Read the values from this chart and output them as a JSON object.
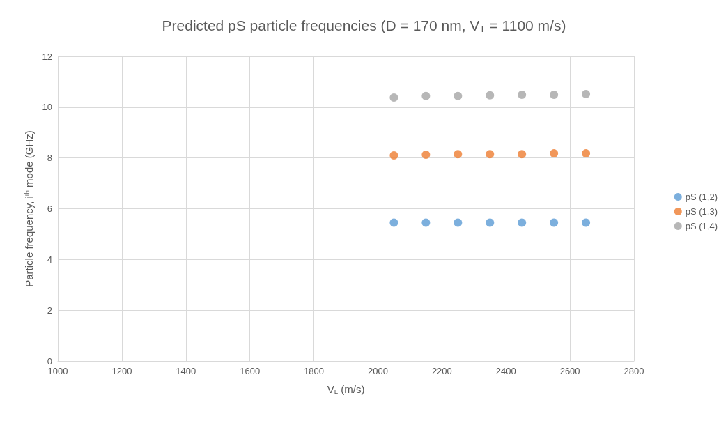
{
  "chart_data": {
    "type": "scatter",
    "title": "Predicted pS particle frequencies (D = 170 nm, V$_{T}$ = 1100 m/s)",
    "xlabel": "V$_{L}$ (m/s)",
    "ylabel": "Particle frequency, i$^{th}$ mode (GHz)",
    "x": [
      2050,
      2150,
      2250,
      2350,
      2450,
      2550,
      2650
    ],
    "series": [
      {
        "name": "pS (1,2)",
        "color": "#5b9bd5",
        "values": [
          5.45,
          5.45,
          5.45,
          5.45,
          5.45,
          5.45,
          5.45
        ]
      },
      {
        "name": "pS (1,3)",
        "color": "#ed7d31",
        "values": [
          8.1,
          8.13,
          8.15,
          8.15,
          8.15,
          8.18,
          8.18
        ]
      },
      {
        "name": "pS (1,4)",
        "color": "#a5a5a5",
        "values": [
          10.38,
          10.44,
          10.44,
          10.47,
          10.49,
          10.49,
          10.52
        ]
      }
    ],
    "xlim": [
      1000,
      2800
    ],
    "xticks": [
      1000,
      1200,
      1400,
      1600,
      1800,
      2000,
      2200,
      2400,
      2600,
      2800
    ],
    "ylim": [
      0,
      12
    ],
    "yticks": [
      0,
      2,
      4,
      6,
      8,
      10,
      12
    ],
    "grid": true,
    "legend": "right",
    "marker": "circle"
  }
}
